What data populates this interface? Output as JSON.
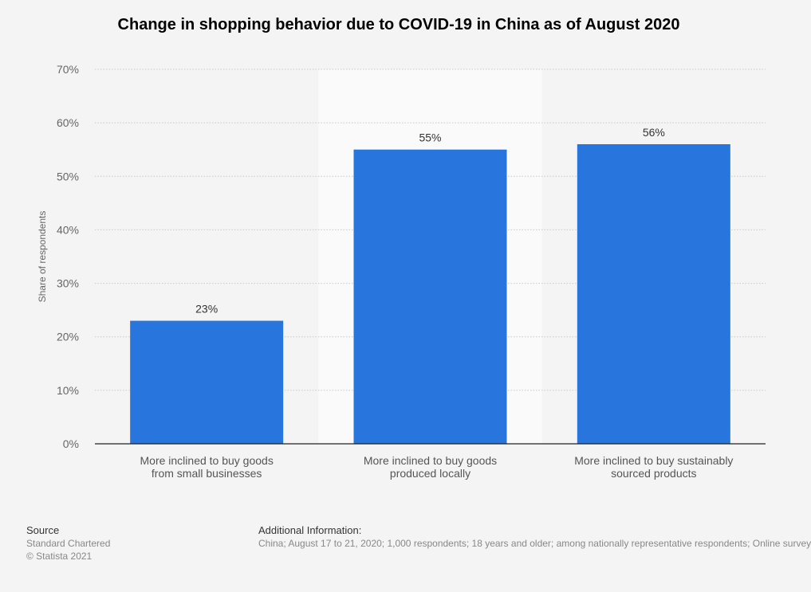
{
  "chart_data": {
    "type": "bar",
    "title": "Change in shopping behavior due to COVID-19 in China as of August 2020",
    "xlabel": "",
    "ylabel": "Share of respondents",
    "categories": [
      [
        "More inclined to buy goods",
        "from small businesses"
      ],
      [
        "More inclined to buy goods",
        "produced locally"
      ],
      [
        "More inclined to buy sustainably",
        "sourced products"
      ]
    ],
    "values": [
      23,
      55,
      56
    ],
    "value_labels": [
      "23%",
      "55%",
      "56%"
    ],
    "ylim": [
      0,
      70
    ],
    "yticks": [
      0,
      10,
      20,
      30,
      40,
      50,
      60,
      70
    ],
    "ytick_labels": [
      "0%",
      "10%",
      "20%",
      "30%",
      "40%",
      "50%",
      "60%",
      "70%"
    ],
    "highlighted_category_index": 1,
    "grid": true,
    "colors": {
      "bar": "#2876dd",
      "highlight_band": "#fafafa",
      "grid": "#c8c8c8"
    }
  },
  "footer": {
    "source_heading": "Source",
    "source_name": "Standard Chartered",
    "copyright": "© Statista 2021",
    "info_heading": "Additional Information:",
    "info_text": "China; August 17 to 21, 2020; 1,000 respondents; 18 years and older; among nationally representative respondents; Online survey"
  }
}
